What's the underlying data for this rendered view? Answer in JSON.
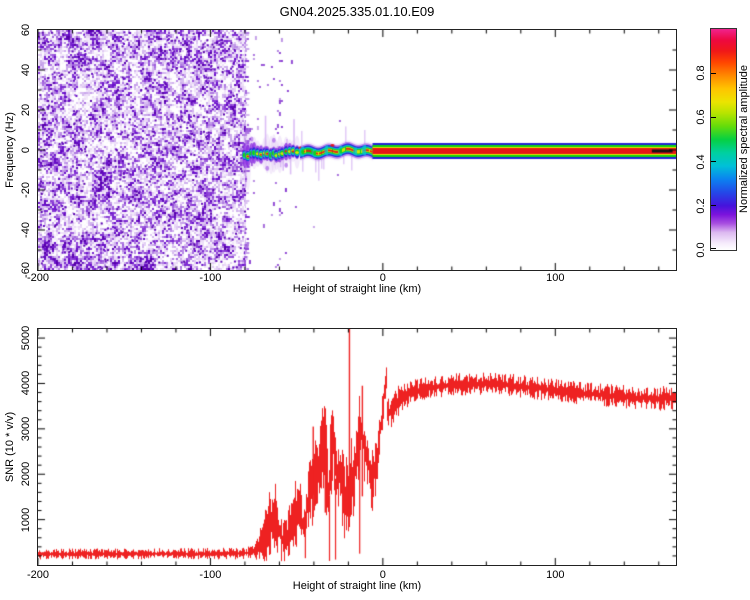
{
  "title": "GN04.2025.335.01.10.E09",
  "top_panel": {
    "xlabel": "Height of straight line (km)",
    "ylabel": "Frequency (Hz)",
    "xtick_labels": [
      "-200",
      "-100",
      "0",
      "100"
    ],
    "xtick_values": [
      -200,
      -100,
      0,
      100
    ],
    "ytick_labels": [
      "60",
      "40",
      "20",
      "0",
      "-20",
      "-40",
      "-60"
    ],
    "ytick_values": [
      60,
      40,
      20,
      0,
      -20,
      -40,
      -60
    ],
    "x_range_km": [
      -200,
      170
    ],
    "y_range_hz": [
      -60,
      60
    ]
  },
  "colorbar": {
    "label": "Normalized spectral amplitude",
    "tick_labels": [
      "0.0",
      "0.2",
      "0.4",
      "0.6",
      "0.8"
    ],
    "tick_values": [
      0.0,
      0.2,
      0.4,
      0.6,
      0.8
    ],
    "range": [
      0,
      1
    ],
    "gradient_stops": [
      {
        "v": 0.0,
        "c": "#ffffff"
      },
      {
        "v": 0.03,
        "c": "#f6ecfc"
      },
      {
        "v": 0.08,
        "c": "#dcb8f0"
      },
      {
        "v": 0.12,
        "c": "#a84fe0"
      },
      {
        "v": 0.16,
        "c": "#7c14dc"
      },
      {
        "v": 0.2,
        "c": "#4613dc"
      },
      {
        "v": 0.26,
        "c": "#2448e8"
      },
      {
        "v": 0.32,
        "c": "#0b82f0"
      },
      {
        "v": 0.38,
        "c": "#00c0d8"
      },
      {
        "v": 0.44,
        "c": "#00d0a0"
      },
      {
        "v": 0.5,
        "c": "#06d042"
      },
      {
        "v": 0.56,
        "c": "#64dc0a"
      },
      {
        "v": 0.62,
        "c": "#b8e400"
      },
      {
        "v": 0.67,
        "c": "#ece400"
      },
      {
        "v": 0.73,
        "c": "#ffc400"
      },
      {
        "v": 0.79,
        "c": "#ff8800"
      },
      {
        "v": 0.85,
        "c": "#ff4400"
      },
      {
        "v": 0.9,
        "c": "#f01818"
      },
      {
        "v": 0.95,
        "c": "#ee0840"
      },
      {
        "v": 1.0,
        "c": "#f0238e"
      }
    ]
  },
  "bottom_panel": {
    "xlabel": "Height of straight line (km)",
    "ylabel": "SNR (10 * v/v)",
    "xtick_labels": [
      "-200",
      "-100",
      "0",
      "100"
    ],
    "xtick_values": [
      -200,
      -100,
      0,
      100
    ],
    "ytick_labels": [
      "1000",
      "2000",
      "3000",
      "4000",
      "5000"
    ],
    "ytick_values": [
      1000,
      2000,
      3000,
      4000,
      5000
    ],
    "x_range_km": [
      -200,
      170
    ],
    "y_range": [
      0,
      5200
    ]
  },
  "colors": {
    "snr_trace": "#ee2222",
    "axis": "#222222",
    "text": "#000000",
    "noise_ramp": [
      "#ffffff",
      "#ead9f7",
      "#c5a0ea",
      "#9146d8",
      "#6a10cc",
      "#5600a8"
    ],
    "band": {
      "halo": "#d8b8f2",
      "purple": "#8a2be2",
      "blue": "#2020d8",
      "cyan": "#00c8d0",
      "green": "#12d412",
      "yellow": "#e6e600",
      "red": "#e81616",
      "black": "#141414"
    }
  },
  "chart_data": [
    {
      "type": "heatmap",
      "panel": "top",
      "xlabel": "Height of straight line (km)",
      "ylabel": "Frequency (Hz)",
      "xlim": [
        -200,
        170
      ],
      "ylim": [
        -60,
        60
      ],
      "colorbar_label": "Normalized spectral amplitude",
      "colorbar_range": [
        0,
        1
      ],
      "noise_region_km": [
        -200,
        -80
      ],
      "sparse_speckle_km": [
        -80,
        -25
      ],
      "speckle_column_km": [
        -63,
        -57
      ],
      "signal_band": {
        "start_km": -80,
        "end_km": 170,
        "center_freq_hz_start": -2.5,
        "center_freq_hz_end": -0.5,
        "blobby_until_km": -48,
        "dashed_until_km": -6,
        "solid_halfwidth_hz": {
          "blue": 4.0,
          "green": 3.0,
          "yellow": 2.0,
          "red": 1.5
        },
        "black_overlay_km": [
          156,
          168
        ]
      }
    },
    {
      "type": "line",
      "panel": "bottom",
      "xlabel": "Height of straight line (km)",
      "ylabel": "SNR (10 * v/v)",
      "xlim": [
        -200,
        170
      ],
      "ylim": [
        0,
        5200
      ],
      "series_color": "#ee2222",
      "envelope_km": [
        -200,
        -150,
        -100,
        -85,
        -78,
        -74,
        -70,
        -67,
        -64,
        -61,
        -58,
        -55,
        -52,
        -49,
        -46,
        -44,
        -42,
        -40,
        -37,
        -34,
        -32,
        -29,
        -27,
        -25,
        -23,
        -21,
        -19,
        -17,
        -15,
        -13,
        -11,
        -9,
        -7,
        -5,
        -3,
        -1,
        2,
        6,
        10,
        15,
        20,
        30,
        45,
        60,
        75,
        90,
        105,
        120,
        135,
        150,
        160,
        170
      ],
      "envelope_mean": [
        240,
        245,
        250,
        255,
        270,
        300,
        550,
        900,
        1050,
        800,
        650,
        950,
        1100,
        1000,
        600,
        1100,
        1700,
        2000,
        2200,
        2400,
        1200,
        2200,
        1800,
        2300,
        2000,
        2200,
        2300,
        2000,
        2400,
        2800,
        2700,
        2900,
        2600,
        2900,
        3100,
        3200,
        3300,
        3500,
        3650,
        3780,
        3850,
        3920,
        3980,
        4000,
        3960,
        3890,
        3820,
        3770,
        3720,
        3680,
        3660,
        3700
      ],
      "envelope_jitter": [
        110,
        110,
        115,
        120,
        130,
        160,
        450,
        700,
        800,
        650,
        500,
        700,
        750,
        700,
        450,
        800,
        1000,
        1100,
        1000,
        1100,
        1000,
        1200,
        1300,
        1000,
        900,
        900,
        900,
        800,
        900,
        900,
        800,
        700,
        800,
        600,
        500,
        450,
        400,
        350,
        300,
        260,
        240,
        230,
        230,
        230,
        230,
        230,
        230,
        230,
        240,
        240,
        250,
        250
      ],
      "spikes": [
        {
          "km": -19.5,
          "snr": 5250
        },
        {
          "km": -12.0,
          "snr": 3950
        },
        {
          "km": -33.5,
          "snr": 3200
        },
        {
          "km": -40.5,
          "snr": 3050
        }
      ],
      "dips": [
        {
          "km": -31.0,
          "snr": 90
        },
        {
          "km": -27.5,
          "snr": 120
        },
        {
          "km": -45.0,
          "snr": 150
        },
        {
          "km": -13.5,
          "snr": 250
        }
      ]
    }
  ]
}
